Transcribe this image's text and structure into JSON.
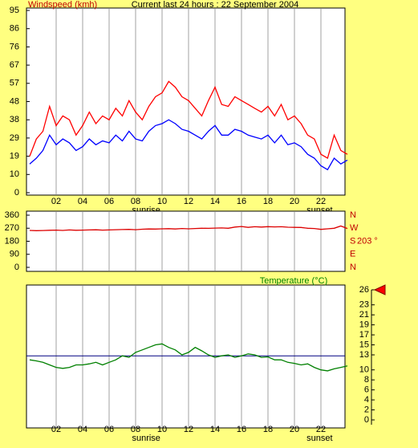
{
  "chart_data": [
    {
      "type": "line",
      "title": "Current last 24 hours : 22 September 2004",
      "y_label": "Windspeed (kmh)",
      "x": [
        0,
        0.5,
        1,
        1.5,
        2,
        2.5,
        3,
        3.5,
        4,
        4.5,
        5,
        5.5,
        6,
        6.5,
        7,
        7.5,
        8,
        8.5,
        9,
        9.5,
        10,
        10.5,
        11,
        11.5,
        12,
        12.5,
        13,
        13.5,
        14,
        14.5,
        15,
        15.5,
        16,
        16.5,
        17,
        17.5,
        18,
        18.5,
        19,
        19.5,
        20,
        20.5,
        21,
        21.5,
        22,
        22.5,
        23,
        23.5,
        24
      ],
      "xlim": [
        0,
        24
      ],
      "xticks": [
        {
          "value": 2,
          "label": "02"
        },
        {
          "value": 4,
          "label": "04"
        },
        {
          "value": 6,
          "label": "06"
        },
        {
          "value": 8,
          "label": "08"
        },
        {
          "value": 10,
          "label": "10"
        },
        {
          "value": 12,
          "label": "12"
        },
        {
          "value": 14,
          "label": "14"
        },
        {
          "value": 16,
          "label": "16"
        },
        {
          "value": 18,
          "label": "18"
        },
        {
          "value": 20,
          "label": "20"
        },
        {
          "value": 22,
          "label": "22"
        }
      ],
      "ylim": [
        0,
        95
      ],
      "yticks": [
        0,
        {
          "value": 9.5,
          "label": "10"
        },
        19,
        {
          "value": 28.5,
          "label": "29"
        },
        38,
        {
          "value": 47.5,
          "label": "48"
        },
        57,
        {
          "value": 66.5,
          "label": "67"
        },
        76,
        {
          "value": 85.5,
          "label": "86"
        },
        95
      ],
      "annotations": [
        {
          "text": "sunrise",
          "x": 8.8
        },
        {
          "text": "sunset",
          "x": 21.9
        }
      ],
      "series": [
        {
          "color": "#ff0000",
          "values": [
            19,
            28,
            32,
            45,
            35,
            40,
            38,
            30,
            35,
            42,
            36,
            40,
            38,
            44,
            40,
            48,
            42,
            38,
            45,
            50,
            52,
            58,
            55,
            50,
            48,
            44,
            40,
            48,
            55,
            46,
            45,
            50,
            48,
            46,
            44,
            42,
            45,
            40,
            46,
            38,
            40,
            36,
            30,
            28,
            20,
            18,
            30,
            22,
            20
          ]
        },
        {
          "color": "#0000ff",
          "values": [
            15,
            18,
            22,
            30,
            25,
            28,
            26,
            22,
            24,
            28,
            25,
            27,
            26,
            30,
            27,
            32,
            28,
            27,
            32,
            35,
            36,
            38,
            36,
            33,
            32,
            30,
            28,
            32,
            35,
            30,
            30,
            33,
            32,
            30,
            29,
            28,
            30,
            26,
            30,
            25,
            26,
            24,
            20,
            18,
            14,
            12,
            18,
            15,
            17
          ]
        }
      ]
    },
    {
      "type": "line",
      "x": [
        0,
        0.5,
        1,
        1.5,
        2,
        2.5,
        3,
        3.5,
        4,
        4.5,
        5,
        5.5,
        6,
        6.5,
        7,
        7.5,
        8,
        8.5,
        9,
        9.5,
        10,
        10.5,
        11,
        11.5,
        12,
        12.5,
        13,
        13.5,
        14,
        14.5,
        15,
        15.5,
        16,
        16.5,
        17,
        17.5,
        18,
        18.5,
        19,
        19.5,
        20,
        20.5,
        21,
        21.5,
        22,
        22.5,
        23,
        23.5,
        24
      ],
      "xlim": [
        0,
        24
      ],
      "ylim": [
        0,
        360
      ],
      "yticks": [
        0,
        90,
        180,
        270,
        360
      ],
      "y2lim": [
        0,
        360
      ],
      "y2ticks": [
        {
          "value": 0,
          "label": "N"
        },
        {
          "value": 90,
          "label": "E"
        },
        {
          "value": 180,
          "label": "S"
        },
        {
          "value": 270,
          "label": "W"
        },
        {
          "value": 360,
          "label": "N"
        }
      ],
      "current": {
        "value": 203,
        "label": "203 °"
      },
      "series": [
        {
          "color": "#dd0000",
          "values": [
            255,
            253,
            254,
            256,
            257,
            255,
            258,
            256,
            257,
            258,
            259,
            257,
            258,
            260,
            261,
            262,
            260,
            263,
            265,
            264,
            266,
            267,
            265,
            268,
            266,
            268,
            270,
            269,
            271,
            272,
            270,
            278,
            282,
            276,
            280,
            278,
            281,
            279,
            280,
            277,
            276,
            275,
            270,
            268,
            262,
            266,
            270,
            285,
            268
          ]
        }
      ]
    },
    {
      "type": "line",
      "title": "Temperature (°C)",
      "x": [
        0,
        0.5,
        1,
        1.5,
        2,
        2.5,
        3,
        3.5,
        4,
        4.5,
        5,
        5.5,
        6,
        6.5,
        7,
        7.5,
        8,
        8.5,
        9,
        9.5,
        10,
        10.5,
        11,
        11.5,
        12,
        12.5,
        13,
        13.5,
        14,
        14.5,
        15,
        15.5,
        16,
        16.5,
        17,
        17.5,
        18,
        18.5,
        19,
        19.5,
        20,
        20.5,
        21,
        21.5,
        22,
        22.5,
        23,
        23.5,
        24
      ],
      "xlim": [
        0,
        24
      ],
      "xticks": [
        {
          "value": 2,
          "label": "02"
        },
        {
          "value": 4,
          "label": "04"
        },
        {
          "value": 6,
          "label": "06"
        },
        {
          "value": 8,
          "label": "08"
        },
        {
          "value": 10,
          "label": "10"
        },
        {
          "value": 12,
          "label": "12"
        },
        {
          "value": 14,
          "label": "14"
        },
        {
          "value": 16,
          "label": "16"
        },
        {
          "value": 18,
          "label": "18"
        },
        {
          "value": 20,
          "label": "20"
        },
        {
          "value": 22,
          "label": "22"
        }
      ],
      "ylim": [
        0,
        26
      ],
      "yticks": [
        0,
        2,
        4,
        6,
        8,
        10,
        13,
        15,
        17,
        19,
        21,
        23,
        26
      ],
      "annotations": [
        {
          "text": "sunrise",
          "x": 8.8
        },
        {
          "text": "sunset",
          "x": 21.9
        }
      ],
      "average": 12.8,
      "average_color": "#000080",
      "marker": 26,
      "marker_color": "#ff0000",
      "series": [
        {
          "color": "#008000",
          "values": [
            12,
            11.8,
            11.5,
            11,
            10.5,
            10.3,
            10.5,
            11,
            11,
            11.2,
            11.5,
            11,
            11.5,
            12,
            12.8,
            12.5,
            13.5,
            14,
            14.5,
            15,
            15.2,
            14.5,
            14,
            13,
            13.5,
            14.5,
            13.8,
            13,
            12.5,
            12.8,
            13,
            12.5,
            12.8,
            13.2,
            13,
            12.5,
            12.6,
            12,
            12,
            11.5,
            11.3,
            11,
            11.2,
            10.5,
            10,
            9.8,
            10.2,
            10.5,
            10.8
          ]
        }
      ]
    }
  ]
}
